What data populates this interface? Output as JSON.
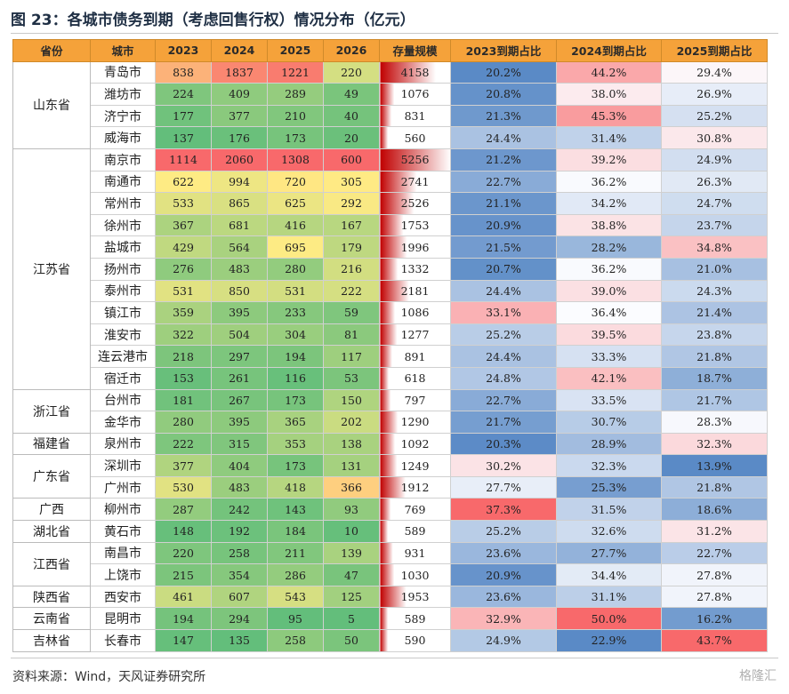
{
  "title": "图 23：各城市债务到期（考虑回售行权）情况分布（亿元）",
  "headers": [
    "省份",
    "城市",
    "2023",
    "2024",
    "2025",
    "2026",
    "存量规模",
    "2023到期占比",
    "2024到期占比",
    "2025到期占比"
  ],
  "groups": [
    {
      "province": "山东省",
      "rows": [
        {
          "city": "青岛市",
          "v": [
            838,
            1837,
            1221,
            220
          ],
          "stock": 4158,
          "p": [
            "20.2%",
            "44.2%",
            "29.4%"
          ]
        },
        {
          "city": "潍坊市",
          "v": [
            224,
            409,
            289,
            49
          ],
          "stock": 1076,
          "p": [
            "20.8%",
            "38.0%",
            "26.9%"
          ]
        },
        {
          "city": "济宁市",
          "v": [
            177,
            377,
            210,
            40
          ],
          "stock": 831,
          "p": [
            "21.3%",
            "45.3%",
            "25.2%"
          ]
        },
        {
          "city": "威海市",
          "v": [
            137,
            176,
            173,
            20
          ],
          "stock": 560,
          "p": [
            "24.4%",
            "31.4%",
            "30.8%"
          ]
        }
      ]
    },
    {
      "province": "江苏省",
      "rows": [
        {
          "city": "南京市",
          "v": [
            1114,
            2060,
            1308,
            600
          ],
          "stock": 5256,
          "p": [
            "21.2%",
            "39.2%",
            "24.9%"
          ]
        },
        {
          "city": "南通市",
          "v": [
            622,
            994,
            720,
            305
          ],
          "stock": 2741,
          "p": [
            "22.7%",
            "36.2%",
            "26.3%"
          ]
        },
        {
          "city": "常州市",
          "v": [
            533,
            865,
            625,
            292
          ],
          "stock": 2526,
          "p": [
            "21.1%",
            "34.2%",
            "24.7%"
          ]
        },
        {
          "city": "徐州市",
          "v": [
            367,
            681,
            416,
            167
          ],
          "stock": 1753,
          "p": [
            "20.9%",
            "38.8%",
            "23.7%"
          ]
        },
        {
          "city": "盐城市",
          "v": [
            429,
            564,
            695,
            179
          ],
          "stock": 1996,
          "p": [
            "21.5%",
            "28.2%",
            "34.8%"
          ]
        },
        {
          "city": "扬州市",
          "v": [
            276,
            483,
            280,
            216
          ],
          "stock": 1332,
          "p": [
            "20.7%",
            "36.2%",
            "21.0%"
          ]
        },
        {
          "city": "泰州市",
          "v": [
            531,
            850,
            531,
            222
          ],
          "stock": 2181,
          "p": [
            "24.4%",
            "39.0%",
            "24.3%"
          ]
        },
        {
          "city": "镇江市",
          "v": [
            359,
            395,
            233,
            59
          ],
          "stock": 1086,
          "p": [
            "33.1%",
            "36.4%",
            "21.4%"
          ]
        },
        {
          "city": "淮安市",
          "v": [
            322,
            504,
            304,
            81
          ],
          "stock": 1277,
          "p": [
            "25.2%",
            "39.5%",
            "23.8%"
          ]
        },
        {
          "city": "连云港市",
          "v": [
            218,
            297,
            194,
            117
          ],
          "stock": 891,
          "p": [
            "24.4%",
            "33.3%",
            "21.8%"
          ]
        },
        {
          "city": "宿迁市",
          "v": [
            153,
            261,
            116,
            53
          ],
          "stock": 618,
          "p": [
            "24.8%",
            "42.1%",
            "18.7%"
          ]
        }
      ]
    },
    {
      "province": "浙江省",
      "rows": [
        {
          "city": "台州市",
          "v": [
            181,
            267,
            173,
            150
          ],
          "stock": 797,
          "p": [
            "22.7%",
            "33.5%",
            "21.7%"
          ]
        },
        {
          "city": "金华市",
          "v": [
            280,
            395,
            365,
            202
          ],
          "stock": 1290,
          "p": [
            "21.7%",
            "30.7%",
            "28.3%"
          ]
        }
      ]
    },
    {
      "province": "福建省",
      "rows": [
        {
          "city": "泉州市",
          "v": [
            222,
            315,
            353,
            138
          ],
          "stock": 1092,
          "p": [
            "20.3%",
            "28.9%",
            "32.3%"
          ]
        }
      ]
    },
    {
      "province": "广东省",
      "rows": [
        {
          "city": "深圳市",
          "v": [
            377,
            404,
            173,
            131
          ],
          "stock": 1249,
          "p": [
            "30.2%",
            "32.3%",
            "13.9%"
          ]
        },
        {
          "city": "广州市",
          "v": [
            530,
            483,
            418,
            366
          ],
          "stock": 1912,
          "p": [
            "27.7%",
            "25.3%",
            "21.8%"
          ]
        }
      ]
    },
    {
      "province": "广西",
      "rows": [
        {
          "city": "柳州市",
          "v": [
            287,
            242,
            143,
            93
          ],
          "stock": 769,
          "p": [
            "37.3%",
            "31.5%",
            "18.6%"
          ]
        }
      ]
    },
    {
      "province": "湖北省",
      "rows": [
        {
          "city": "黄石市",
          "v": [
            148,
            192,
            184,
            10
          ],
          "stock": 589,
          "p": [
            "25.2%",
            "32.6%",
            "31.2%"
          ]
        }
      ]
    },
    {
      "province": "江西省",
      "rows": [
        {
          "city": "南昌市",
          "v": [
            220,
            258,
            211,
            139
          ],
          "stock": 931,
          "p": [
            "23.6%",
            "27.7%",
            "22.7%"
          ]
        },
        {
          "city": "上饶市",
          "v": [
            215,
            354,
            286,
            47
          ],
          "stock": 1030,
          "p": [
            "20.9%",
            "34.4%",
            "27.8%"
          ]
        }
      ]
    },
    {
      "province": "陕西省",
      "rows": [
        {
          "city": "西安市",
          "v": [
            461,
            607,
            543,
            125
          ],
          "stock": 1953,
          "p": [
            "23.6%",
            "31.1%",
            "27.8%"
          ]
        }
      ]
    },
    {
      "province": "云南省",
      "rows": [
        {
          "city": "昆明市",
          "v": [
            194,
            294,
            95,
            5
          ],
          "stock": 589,
          "p": [
            "32.9%",
            "50.0%",
            "16.2%"
          ]
        }
      ]
    },
    {
      "province": "吉林省",
      "rows": [
        {
          "city": "长春市",
          "v": [
            147,
            135,
            258,
            50
          ],
          "stock": 590,
          "p": [
            "24.9%",
            "22.9%",
            "43.7%"
          ]
        }
      ]
    }
  ],
  "colors": {
    "header_bg": "#f5a23a",
    "scale_low": "#63be7b",
    "scale_mid": "#ffeb84",
    "scale_high": "#f8696b",
    "pct_low": "#5a8ac6",
    "pct_mid": "#fcfcff",
    "pct_high": "#f8696b",
    "stock_bar": "#c00000"
  },
  "source": "资料来源：Wind，天风证券研究所",
  "watermark": "格隆汇"
}
